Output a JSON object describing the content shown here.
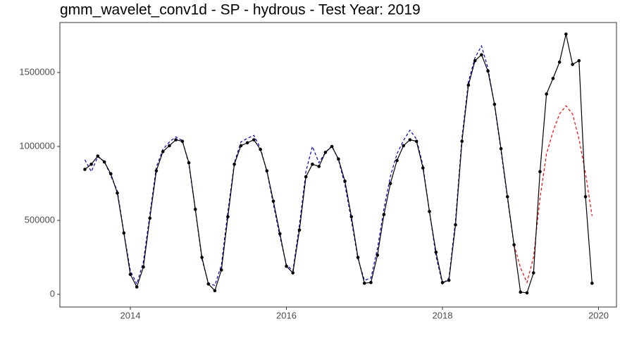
{
  "chart_data": {
    "type": "line",
    "title": "gmm_wavelet_conv1d - SP - hydrous - Test Year: 2019",
    "x": [
      2013.417,
      2013.5,
      2013.583,
      2013.667,
      2013.75,
      2013.833,
      2013.917,
      2014.0,
      2014.083,
      2014.167,
      2014.25,
      2014.333,
      2014.417,
      2014.5,
      2014.583,
      2014.667,
      2014.75,
      2014.833,
      2014.917,
      2015.0,
      2015.083,
      2015.167,
      2015.25,
      2015.333,
      2015.417,
      2015.5,
      2015.583,
      2015.667,
      2015.75,
      2015.833,
      2015.917,
      2016.0,
      2016.083,
      2016.167,
      2016.25,
      2016.333,
      2016.417,
      2016.5,
      2016.583,
      2016.667,
      2016.75,
      2016.833,
      2016.917,
      2017.0,
      2017.083,
      2017.167,
      2017.25,
      2017.333,
      2017.417,
      2017.5,
      2017.583,
      2017.667,
      2017.75,
      2017.833,
      2017.917,
      2018.0,
      2018.083,
      2018.167,
      2018.25,
      2018.333,
      2018.417,
      2018.5,
      2018.583,
      2018.667,
      2018.75,
      2018.833,
      2018.917,
      2019.0,
      2019.083,
      2019.167,
      2019.25,
      2019.333,
      2019.417,
      2019.5,
      2019.583,
      2019.667,
      2019.75,
      2019.833,
      2019.917
    ],
    "series": [
      {
        "color": "#0000cc",
        "dash": true,
        "markers": false,
        "values": [
          910000,
          830000,
          930000,
          900000,
          800000,
          700000,
          420000,
          160000,
          70000,
          220000,
          540000,
          860000,
          980000,
          1030000,
          1065000,
          1040000,
          880000,
          570000,
          240000,
          75000,
          60000,
          200000,
          560000,
          890000,
          1030000,
          1055000,
          1075000,
          990000,
          830000,
          610000,
          390000,
          200000,
          160000,
          470000,
          830000,
          1000000,
          890000,
          960000,
          1005000,
          910000,
          740000,
          500000,
          240000,
          95000,
          110000,
          310000,
          580000,
          800000,
          950000,
          1040000,
          1110000,
          1050000,
          870000,
          560000,
          260000,
          70000,
          110000,
          500000,
          1060000,
          1440000,
          1600000,
          1680000,
          1530000,
          1280000,
          970000,
          650000,
          330000,
          null,
          null,
          null,
          null,
          null,
          null,
          null,
          null,
          null,
          null,
          null,
          null
        ]
      },
      {
        "color": "#ff0000",
        "dash": true,
        "markers": false,
        "values": [
          null,
          null,
          null,
          null,
          null,
          null,
          null,
          null,
          null,
          null,
          null,
          null,
          null,
          null,
          null,
          null,
          null,
          null,
          null,
          null,
          null,
          null,
          null,
          null,
          null,
          null,
          null,
          null,
          null,
          null,
          null,
          null,
          null,
          null,
          null,
          null,
          null,
          null,
          null,
          null,
          null,
          null,
          null,
          null,
          null,
          null,
          null,
          null,
          null,
          null,
          null,
          null,
          null,
          null,
          null,
          null,
          null,
          null,
          null,
          null,
          null,
          null,
          null,
          null,
          null,
          null,
          335000,
          180000,
          80000,
          250000,
          650000,
          950000,
          1100000,
          1220000,
          1275000,
          1220000,
          1050000,
          820000,
          530000
        ]
      },
      {
        "color": "#000000",
        "dash": false,
        "markers": true,
        "values": [
          845000,
          880000,
          935000,
          895000,
          815000,
          685000,
          415000,
          135000,
          50000,
          185000,
          515000,
          835000,
          965000,
          1005000,
          1045000,
          1035000,
          890000,
          575000,
          250000,
          70000,
          25000,
          165000,
          525000,
          880000,
          1005000,
          1025000,
          1045000,
          980000,
          835000,
          630000,
          410000,
          190000,
          145000,
          435000,
          795000,
          880000,
          865000,
          960000,
          1000000,
          915000,
          765000,
          525000,
          250000,
          75000,
          80000,
          265000,
          540000,
          750000,
          905000,
          1005000,
          1045000,
          1035000,
          855000,
          560000,
          285000,
          80000,
          95000,
          470000,
          1035000,
          1415000,
          1580000,
          1620000,
          1510000,
          1285000,
          985000,
          660000,
          335000,
          15000,
          10000,
          145000,
          830000,
          1355000,
          1460000,
          1570000,
          1760000,
          1555000,
          1580000,
          660000,
          75000
        ]
      }
    ],
    "xlim": [
      2013.097,
      2020.23
    ],
    "xticks": [
      2014,
      2016,
      2018,
      2020
    ],
    "ylim": [
      -85714,
      1838095
    ],
    "yticks": [
      0,
      500000,
      1000000,
      1500000
    ],
    "grid": false
  }
}
